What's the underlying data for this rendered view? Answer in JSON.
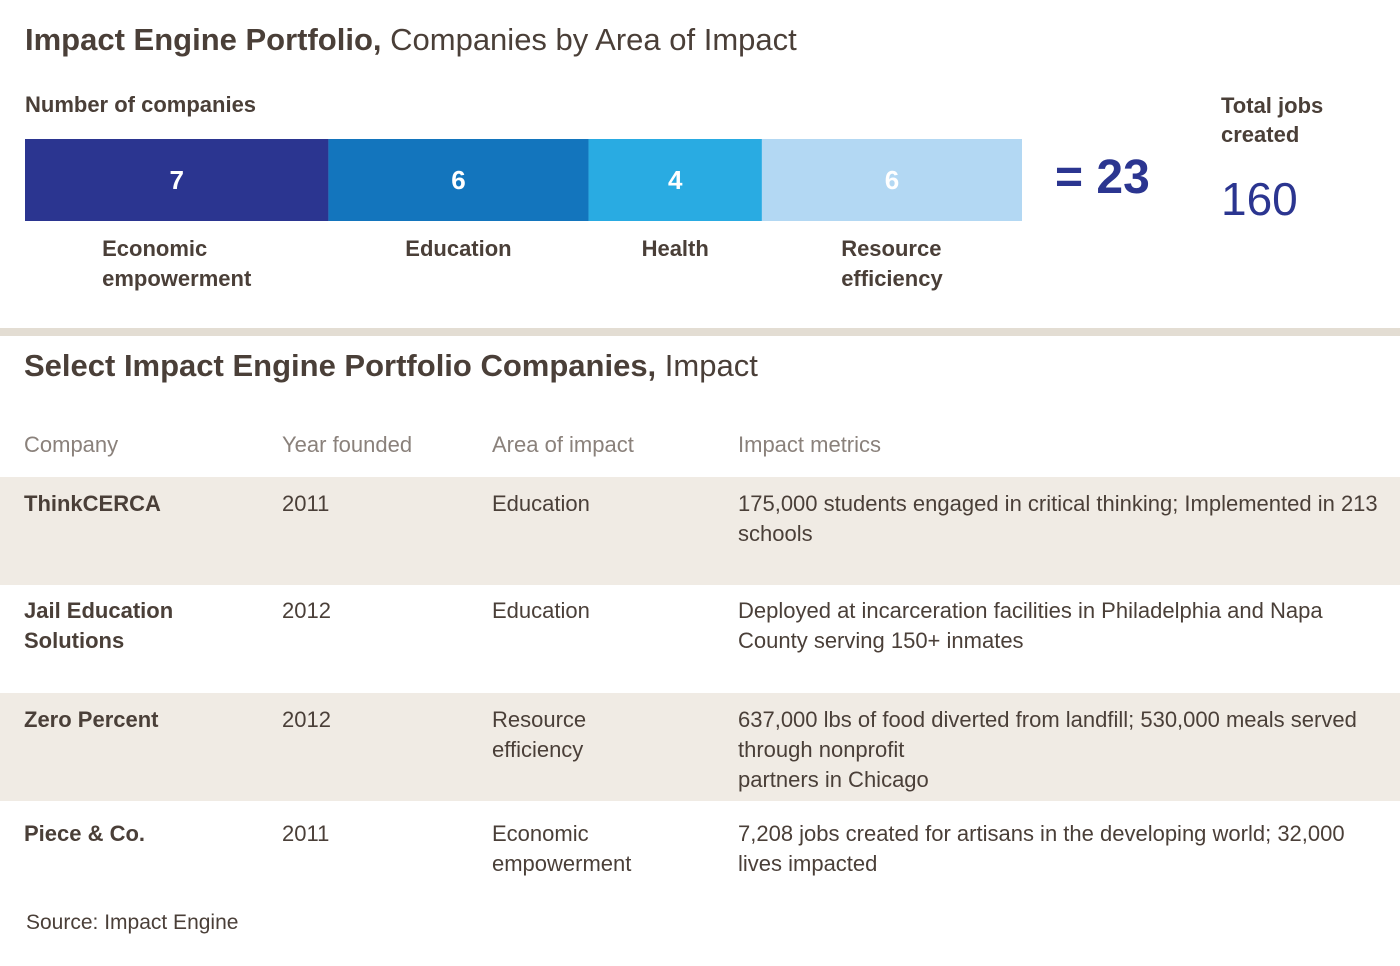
{
  "header": {
    "title_bold": "Impact Engine Portfolio,",
    "title_regular": " Companies by Area of Impact",
    "subtitle": "Number of companies"
  },
  "chart_data": {
    "type": "bar",
    "orientation": "stacked-horizontal",
    "categories": [
      "Economic empowerment",
      "Education",
      "Health",
      "Resource efficiency"
    ],
    "category_lines": [
      [
        "Economic",
        "empowerment"
      ],
      [
        "Education"
      ],
      [
        "Health"
      ],
      [
        "Resource",
        "efficiency"
      ]
    ],
    "values": [
      7,
      6,
      4,
      6
    ],
    "colors": [
      "#2b3590",
      "#1375bd",
      "#29abe2",
      "#b3d8f3"
    ],
    "total_text": "= 23",
    "total": 23
  },
  "jobs": {
    "label": "Total jobs created",
    "value": "160"
  },
  "table": {
    "title_bold": "Select Impact Engine Portfolio Companies,",
    "title_regular": " Impact",
    "headers": {
      "company": "Company",
      "year": "Year founded",
      "area": "Area of impact",
      "metrics": "Impact metrics"
    },
    "rows": [
      {
        "company": "ThinkCERCA",
        "year": "2011",
        "area": "Education",
        "metrics": "175,000 students engaged in critical thinking; Implemented in 213 schools"
      },
      {
        "company": "Jail Education Solutions",
        "year": "2012",
        "area": "Education",
        "metrics": "Deployed at incarceration facilities in Philadelphia and Napa County serving 150+ inmates"
      },
      {
        "company": "Zero Percent",
        "year": "2012",
        "area": "Resource efficiency",
        "metrics": "637,000 lbs of food diverted from landfill; 530,000 meals served through nonprofit\npartners in Chicago"
      },
      {
        "company": "Piece & Co.",
        "year": "2011",
        "area": "Economic empowerment",
        "metrics": "7,208 jobs created for artisans in the developing world; 32,000 lives impacted"
      }
    ]
  },
  "source": "Source: Impact Engine"
}
